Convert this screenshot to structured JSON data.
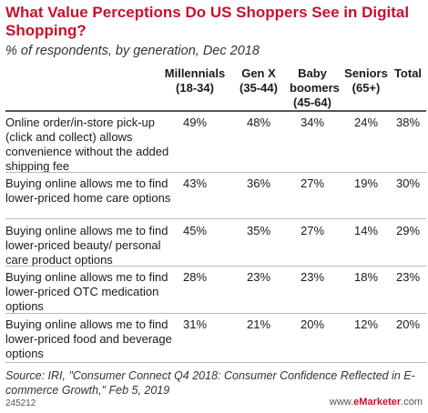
{
  "title": "What Value Perceptions Do US Shoppers See in Digital Shopping?",
  "subtitle": "% of respondents, by generation, Dec 2018",
  "source": "Source: IRI, \"Consumer Connect Q4 2018: Consumer Confidence Reflected in E-commerce Growth,\" Feb 5, 2019",
  "chart_code": "245212",
  "brand": {
    "prefix": "www.",
    "name": "eMarketer",
    "suffix": ".com"
  },
  "colors": {
    "title": "#c8102e",
    "rule": "#b8b8b8",
    "text": "#1a1a1a"
  },
  "chart_data": {
    "type": "table",
    "title": "What Value Perceptions Do US Shoppers See in Digital Shopping?",
    "subtitle": "% of respondents, by generation, Dec 2018",
    "columns": [
      {
        "name": "Millennials",
        "range": "(18-34)"
      },
      {
        "name": "Gen X",
        "range": "(35-44)"
      },
      {
        "name": "Baby boomers",
        "range": "(45-64)"
      },
      {
        "name": "Seniors",
        "range": "(65+)"
      },
      {
        "name": "Total",
        "range": ""
      }
    ],
    "rows": [
      {
        "label": "Online order/in-store pick-up (click and collect) allows convenience without the added shipping fee",
        "values": [
          "49%",
          "48%",
          "34%",
          "24%",
          "38%"
        ]
      },
      {
        "label": "Buying online allows me to find lower-priced home care options",
        "values": [
          "43%",
          "36%",
          "27%",
          "19%",
          "30%"
        ]
      },
      {
        "label": "Buying online allows me to find lower-priced beauty/ personal care product options",
        "values": [
          "45%",
          "35%",
          "27%",
          "14%",
          "29%"
        ]
      },
      {
        "label": "Buying online allows me to find lower-priced OTC medication options",
        "values": [
          "28%",
          "23%",
          "23%",
          "18%",
          "23%"
        ]
      },
      {
        "label": "Buying online allows me to find lower-priced food and beverage options",
        "values": [
          "31%",
          "21%",
          "20%",
          "12%",
          "20%"
        ]
      }
    ]
  }
}
